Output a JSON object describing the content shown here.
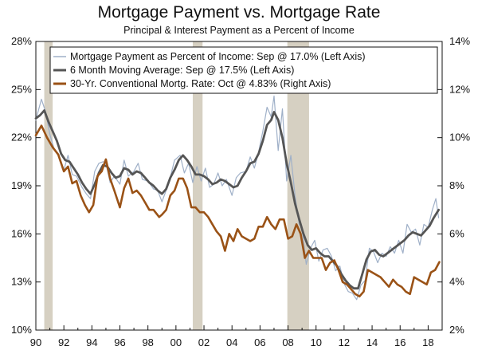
{
  "chart_data": {
    "type": "line",
    "title": "Mortgage Payment vs. Mortgage Rate",
    "subtitle": "Principal & Interest Payment as a Percent of Income",
    "x_ticks": [
      "90",
      "92",
      "94",
      "96",
      "98",
      "00",
      "02",
      "04",
      "06",
      "08",
      "10",
      "12",
      "14",
      "16",
      "18"
    ],
    "x_range": [
      1990,
      2019
    ],
    "left_axis": {
      "ticks": [
        "10%",
        "13%",
        "16%",
        "19%",
        "22%",
        "25%",
        "28%"
      ],
      "range": [
        10,
        28
      ]
    },
    "right_axis": {
      "ticks": [
        "2%",
        "4%",
        "6%",
        "8%",
        "10%",
        "12%",
        "14%"
      ],
      "range": [
        2,
        14
      ]
    },
    "recessions": [
      [
        1990.6,
        1991.2
      ],
      [
        2001.2,
        2001.9
      ],
      [
        2007.95,
        2009.5
      ]
    ],
    "legend": [
      "Mortgage Payment as Percent of Income: Sep @ 17.0% (Left Axis)",
      "6 Month Moving Average: Sep @ 17.5% (Left Axis)",
      "30-Yr. Conventional Mortg. Rate: Oct @ 4.83% (Right Axis)"
    ],
    "series": [
      {
        "name": "Mortgage Payment as Percent of Income: Sep @ 17.0% (Left Axis)",
        "axis": "left",
        "color": "#9fb0c8",
        "x": [
          1990.0,
          1990.4,
          1990.7,
          1991.0,
          1991.3,
          1991.6,
          1992.0,
          1992.3,
          1992.6,
          1992.9,
          1993.3,
          1993.6,
          1993.9,
          1994.2,
          1994.5,
          1994.8,
          1995.0,
          1995.3,
          1995.6,
          1996.0,
          1996.3,
          1996.6,
          1997.0,
          1997.3,
          1997.6,
          1998.0,
          1998.4,
          1998.7,
          1999.0,
          1999.5,
          1999.9,
          2000.3,
          2000.6,
          2000.9,
          2001.2,
          2001.5,
          2001.8,
          2002.1,
          2002.4,
          2002.7,
          2003.0,
          2003.3,
          2003.6,
          2004.0,
          2004.3,
          2004.6,
          2005.0,
          2005.3,
          2005.6,
          2005.9,
          2006.2,
          2006.5,
          2006.8,
          2007.0,
          2007.3,
          2007.6,
          2007.9,
          2008.2,
          2008.5,
          2008.8,
          2009.0,
          2009.3,
          2009.6,
          2009.9,
          2010.2,
          2010.5,
          2010.8,
          2011.1,
          2011.4,
          2011.7,
          2012.0,
          2012.3,
          2012.6,
          2012.9,
          2013.2,
          2013.5,
          2013.8,
          2014.1,
          2014.4,
          2014.7,
          2015.0,
          2015.3,
          2015.6,
          2015.9,
          2016.2,
          2016.5,
          2016.8,
          2017.1,
          2017.4,
          2017.7,
          2018.0,
          2018.3,
          2018.55,
          2018.75
        ],
        "values": [
          23.1,
          24.4,
          23.6,
          22.2,
          21.3,
          21.0,
          20.0,
          20.9,
          19.7,
          19.6,
          18.9,
          18.5,
          18.2,
          19.9,
          20.4,
          20.5,
          20.4,
          19.2,
          19.6,
          19.1,
          20.6,
          19.6,
          19.9,
          20.4,
          19.4,
          19.3,
          18.8,
          18.7,
          18.0,
          19.2,
          20.6,
          20.9,
          19.8,
          20.4,
          19.2,
          20.2,
          19.3,
          20.1,
          18.9,
          19.1,
          19.8,
          19.0,
          19.4,
          18.4,
          19.5,
          19.8,
          19.9,
          20.8,
          20.1,
          21.1,
          22.4,
          23.9,
          23.3,
          24.6,
          21.2,
          23.8,
          19.3,
          20.9,
          18.4,
          16.6,
          16.4,
          14.1,
          15.1,
          15.6,
          14.3,
          15.0,
          15.1,
          14.6,
          13.7,
          14.0,
          12.9,
          12.4,
          12.3,
          11.9,
          12.8,
          13.1,
          15.1,
          14.9,
          14.2,
          14.8,
          14.6,
          15.2,
          14.8,
          15.6,
          14.8,
          16.6,
          16.1,
          16.3,
          15.3,
          16.6,
          16.4,
          17.5,
          18.2,
          17.0
        ]
      },
      {
        "name": "6 Month Moving Average: Sep @ 17.5% (Left Axis)",
        "axis": "left",
        "color": "#555555",
        "x": [
          1990.0,
          1990.3,
          1990.6,
          1990.9,
          1991.2,
          1991.5,
          1991.8,
          1992.1,
          1992.4,
          1992.7,
          1993.0,
          1993.3,
          1993.6,
          1993.9,
          1994.2,
          1994.5,
          1994.8,
          1995.1,
          1995.4,
          1995.7,
          1996.0,
          1996.3,
          1996.6,
          1996.9,
          1997.2,
          1997.5,
          1997.8,
          1998.1,
          1998.4,
          1998.7,
          1999.0,
          1999.3,
          1999.6,
          1999.9,
          2000.2,
          2000.5,
          2000.8,
          2001.1,
          2001.4,
          2001.7,
          2002.0,
          2002.3,
          2002.6,
          2002.9,
          2003.2,
          2003.5,
          2003.8,
          2004.1,
          2004.4,
          2004.7,
          2005.0,
          2005.3,
          2005.6,
          2005.9,
          2006.2,
          2006.5,
          2006.8,
          2007.0,
          2007.3,
          2007.6,
          2007.9,
          2008.2,
          2008.5,
          2008.8,
          2009.1,
          2009.4,
          2009.7,
          2010.0,
          2010.3,
          2010.6,
          2010.9,
          2011.2,
          2011.5,
          2011.8,
          2012.1,
          2012.4,
          2012.7,
          2013.0,
          2013.3,
          2013.6,
          2013.9,
          2014.2,
          2014.5,
          2014.8,
          2015.1,
          2015.4,
          2015.7,
          2016.0,
          2016.3,
          2016.6,
          2016.9,
          2017.2,
          2017.5,
          2017.8,
          2018.1,
          2018.4,
          2018.75
        ],
        "values": [
          23.2,
          23.4,
          23.7,
          23.0,
          22.4,
          21.8,
          21.0,
          20.6,
          20.5,
          20.1,
          19.7,
          19.2,
          18.8,
          18.5,
          19.1,
          19.8,
          20.3,
          20.2,
          19.8,
          19.5,
          19.6,
          20.1,
          20.0,
          19.7,
          19.9,
          19.8,
          19.5,
          19.2,
          19.0,
          18.7,
          18.5,
          18.8,
          19.5,
          20.0,
          20.6,
          20.9,
          20.6,
          20.2,
          19.7,
          19.7,
          19.6,
          19.4,
          19.1,
          19.2,
          19.4,
          19.3,
          19.1,
          18.9,
          19.0,
          19.5,
          19.9,
          20.4,
          20.5,
          21.0,
          21.8,
          22.8,
          23.1,
          23.6,
          23.1,
          22.0,
          20.4,
          19.2,
          17.9,
          16.9,
          16.0,
          15.3,
          15.0,
          15.1,
          14.8,
          14.6,
          14.6,
          14.3,
          14.0,
          13.5,
          13.1,
          12.8,
          12.6,
          12.6,
          13.5,
          14.4,
          14.9,
          15.0,
          14.7,
          14.6,
          14.8,
          15.0,
          15.2,
          15.4,
          15.6,
          15.9,
          16.1,
          16.0,
          15.9,
          16.2,
          16.5,
          17.0,
          17.5
        ]
      },
      {
        "name": "30-Yr. Conventional Mortg. Rate: Oct @ 4.83% (Right Axis)",
        "axis": "right",
        "color": "#9a5216",
        "x": [
          1990.0,
          1990.4,
          1990.8,
          1991.2,
          1991.6,
          1992.0,
          1992.3,
          1992.6,
          1992.9,
          1993.2,
          1993.5,
          1993.8,
          1994.1,
          1994.4,
          1994.7,
          1995.0,
          1995.3,
          1995.6,
          1996.0,
          1996.3,
          1996.6,
          1996.9,
          1997.2,
          1997.5,
          1997.8,
          1998.1,
          1998.4,
          1998.8,
          1999.0,
          1999.3,
          1999.6,
          1999.9,
          2000.2,
          2000.5,
          2000.8,
          2001.1,
          2001.4,
          2001.7,
          2002.0,
          2002.3,
          2002.6,
          2002.9,
          2003.2,
          2003.5,
          2003.8,
          2004.1,
          2004.4,
          2004.7,
          2005.0,
          2005.3,
          2005.6,
          2005.9,
          2006.2,
          2006.5,
          2006.8,
          2007.1,
          2007.4,
          2007.7,
          2008.0,
          2008.3,
          2008.6,
          2008.9,
          2009.2,
          2009.5,
          2009.8,
          2010.1,
          2010.4,
          2010.7,
          2011.0,
          2011.3,
          2011.6,
          2011.9,
          2012.2,
          2012.5,
          2012.8,
          2013.1,
          2013.4,
          2013.7,
          2014.0,
          2014.3,
          2014.6,
          2014.9,
          2015.2,
          2015.5,
          2015.8,
          2016.1,
          2016.4,
          2016.7,
          2017.0,
          2017.3,
          2017.6,
          2017.9,
          2018.2,
          2018.5,
          2018.8
        ],
        "values": [
          10.1,
          10.5,
          10.0,
          9.6,
          9.3,
          8.6,
          8.8,
          8.1,
          8.2,
          7.6,
          7.2,
          6.9,
          7.2,
          8.4,
          8.6,
          9.1,
          8.3,
          7.8,
          7.1,
          7.9,
          8.3,
          7.7,
          7.8,
          7.6,
          7.3,
          7.0,
          7.0,
          6.7,
          6.8,
          7.0,
          7.6,
          7.8,
          8.3,
          8.3,
          7.9,
          7.1,
          7.1,
          6.9,
          6.9,
          6.7,
          6.4,
          6.1,
          5.9,
          5.3,
          6.0,
          5.7,
          6.2,
          5.9,
          5.8,
          5.7,
          5.8,
          6.3,
          6.3,
          6.7,
          6.4,
          6.2,
          6.6,
          6.6,
          5.8,
          5.9,
          6.4,
          6.0,
          5.0,
          5.3,
          5.0,
          5.0,
          5.0,
          4.5,
          4.8,
          4.9,
          4.5,
          4.0,
          3.9,
          3.7,
          3.5,
          3.4,
          3.6,
          4.5,
          4.4,
          4.3,
          4.2,
          4.0,
          3.8,
          4.1,
          3.9,
          3.8,
          3.6,
          3.5,
          4.2,
          4.1,
          4.0,
          3.9,
          4.4,
          4.5,
          4.83
        ]
      }
    ]
  }
}
